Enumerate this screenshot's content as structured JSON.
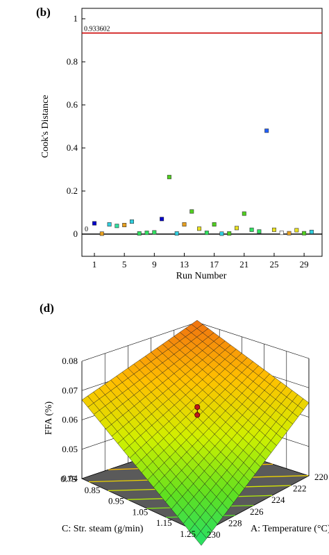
{
  "chart_data": [
    {
      "panel_label": "(b)",
      "type": "scatter",
      "xlabel": "Run Number",
      "ylabel": "Cook's Distance",
      "xlim": [
        0,
        31
      ],
      "ylim": [
        0,
        1
      ],
      "x_ticks": [
        "1",
        "5",
        "9",
        "13",
        "17",
        "21",
        "25",
        "29"
      ],
      "y_ticks": [
        "0",
        "0.2",
        "0.4",
        "0.6",
        "0.8",
        "1"
      ],
      "reference_lines": [
        {
          "y": 0.933602,
          "label": "0.933602",
          "color": "#cc0000"
        },
        {
          "y": 0,
          "label": "0",
          "color": "#000000"
        }
      ],
      "points": [
        {
          "x": 1,
          "y": 0.05,
          "color": "#0000cc"
        },
        {
          "x": 2,
          "y": 0.002,
          "color": "#e8a020"
        },
        {
          "x": 3,
          "y": 0.045,
          "color": "#30d0e0"
        },
        {
          "x": 4,
          "y": 0.038,
          "color": "#30e0a0"
        },
        {
          "x": 5,
          "y": 0.042,
          "color": "#e8a020"
        },
        {
          "x": 6,
          "y": 0.058,
          "color": "#30d0e0"
        },
        {
          "x": 7,
          "y": 0.003,
          "color": "#30e060"
        },
        {
          "x": 8,
          "y": 0.006,
          "color": "#30e060"
        },
        {
          "x": 9,
          "y": 0.008,
          "color": "#30e060"
        },
        {
          "x": 10,
          "y": 0.07,
          "color": "#0000cc"
        },
        {
          "x": 11,
          "y": 0.265,
          "color": "#50d020"
        },
        {
          "x": 12,
          "y": 0.003,
          "color": "#30d0e0"
        },
        {
          "x": 13,
          "y": 0.045,
          "color": "#e8a020"
        },
        {
          "x": 14,
          "y": 0.105,
          "color": "#50d020"
        },
        {
          "x": 15,
          "y": 0.025,
          "color": "#e8e020"
        },
        {
          "x": 16,
          "y": 0.006,
          "color": "#30e060"
        },
        {
          "x": 17,
          "y": 0.045,
          "color": "#50d020"
        },
        {
          "x": 18,
          "y": 0.002,
          "color": "#30d0e0"
        },
        {
          "x": 19,
          "y": 0.003,
          "color": "#50d020"
        },
        {
          "x": 20,
          "y": 0.028,
          "color": "#e8e020"
        },
        {
          "x": 21,
          "y": 0.095,
          "color": "#50d020"
        },
        {
          "x": 22,
          "y": 0.02,
          "color": "#30e060"
        },
        {
          "x": 23,
          "y": 0.012,
          "color": "#30e060"
        },
        {
          "x": 24,
          "y": 0.48,
          "color": "#2060ff"
        },
        {
          "x": 25,
          "y": 0.02,
          "color": "#e8e020"
        },
        {
          "x": 26,
          "y": 0.006,
          "color": "#ffffff"
        },
        {
          "x": 27,
          "y": 0.004,
          "color": "#e8a020"
        },
        {
          "x": 28,
          "y": 0.018,
          "color": "#e8e020"
        },
        {
          "x": 29,
          "y": 0.004,
          "color": "#50d020"
        },
        {
          "x": 30,
          "y": 0.01,
          "color": "#30d0e0"
        }
      ]
    },
    {
      "panel_label": "(d)",
      "type": "surface",
      "zlabel": "FFA (%)",
      "xlabel": "A: Temperature (°C)",
      "ylabel": "C: Str. steam (g/min)",
      "z_ticks": [
        "0.04",
        "0.05",
        "0.06",
        "0.07",
        "0.08"
      ],
      "x_ticks": [
        "220",
        "222",
        "224",
        "226",
        "228",
        "230"
      ],
      "y_ticks": [
        "0.75",
        "0.85",
        "0.95",
        "1.05",
        "1.15",
        "1.25"
      ],
      "zlim": [
        0.04,
        0.08
      ],
      "xlim": [
        220,
        230
      ],
      "ylim": [
        0.75,
        1.25
      ],
      "corner_values": [
        {
          "A": 220,
          "C": 0.75,
          "FFA": 0.0807
        },
        {
          "A": 230,
          "C": 0.75,
          "FFA": 0.0668
        },
        {
          "A": 220,
          "C": 1.25,
          "FFA": 0.0649
        },
        {
          "A": 230,
          "C": 1.25,
          "FFA": 0.0359
        }
      ],
      "design_points": [
        {
          "A": 225,
          "C": 1.0,
          "FFA": 0.0655
        },
        {
          "A": 225,
          "C": 1.0,
          "FFA": 0.0628
        }
      ],
      "colormap": [
        "#20e070",
        "#60e020",
        "#d0f000",
        "#ffc000",
        "#f07010"
      ]
    }
  ]
}
